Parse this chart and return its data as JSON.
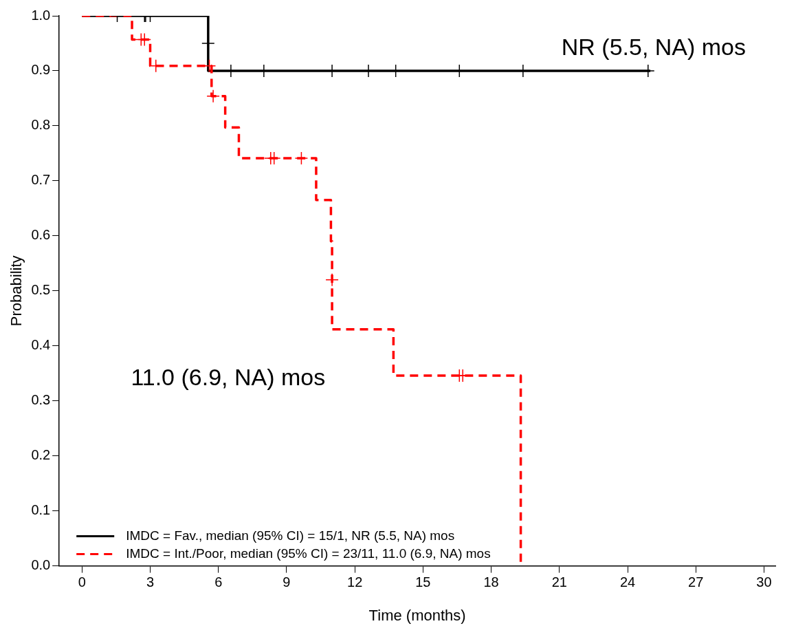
{
  "chart_data": {
    "type": "step",
    "xlabel": "Time (months)",
    "ylabel": "Probability",
    "annotations": [
      "NR (5.5, NA) mos",
      "11.0 (6.9, NA) mos"
    ],
    "xlim": [
      -1,
      30.5
    ],
    "ylim": [
      0,
      1
    ],
    "xticks": [
      0,
      3,
      6,
      9,
      12,
      15,
      18,
      21,
      24,
      27,
      30
    ],
    "yticks": [
      {
        "value": 0,
        "label": "0.0"
      },
      {
        "value": 0.1,
        "label": "0.1"
      },
      {
        "value": 0.2,
        "label": "0.2"
      },
      {
        "value": 0.3,
        "label": "0.3"
      },
      {
        "value": 0.4,
        "label": "0.4"
      },
      {
        "value": 0.5,
        "label": "0.5"
      },
      {
        "value": 0.6,
        "label": "0.6"
      },
      {
        "value": 0.7,
        "label": "0.7"
      },
      {
        "value": 0.8,
        "label": "0.8"
      },
      {
        "value": 0.9,
        "label": "0.9"
      },
      {
        "value": 1,
        "label": "1.0"
      }
    ],
    "grid": false,
    "legend": "bottom left",
    "series": [
      {
        "name": "IMDC = Fav., median (95% CI) = 15/1, NR (5.5, NA) mos",
        "color": "#000000",
        "line_style": "solid",
        "x": [
          0,
          5.55,
          25
        ],
        "values": [
          1,
          0.9,
          0.9
        ]
      },
      {
        "name": "IMDC = Int./Poor, median (95% CI) = 23/11, 11.0 (6.9, NA) mos",
        "color": "#ff0000",
        "line_style": "dashed",
        "x": [
          0,
          2.2,
          3.0,
          5.7,
          6.3,
          6.9,
          10.3,
          10.95,
          11.0,
          11.0,
          13.7,
          19.3
        ],
        "values": [
          1,
          0.957,
          0.909,
          0.854,
          0.797,
          0.741,
          0.665,
          0.59,
          0.52,
          0.43,
          0.346,
          0
        ]
      },
      {
        "type": "scatter",
        "color": "#000000",
        "marker": "cross",
        "x": [
          1.55,
          2.75,
          2.8,
          3.0,
          5.55,
          6.55,
          8.0,
          11.0,
          12.6,
          13.8,
          16.6,
          19.4,
          24.9
        ],
        "values": [
          1,
          1,
          1,
          1,
          0.95,
          0.9,
          0.9,
          0.9,
          0.9,
          0.9,
          0.9,
          0.9,
          0.9
        ]
      },
      {
        "type": "scatter",
        "color": "#ff0000",
        "marker": "cross",
        "x": [
          2.6,
          2.75,
          3.25,
          5.6,
          5.77,
          8.3,
          8.45,
          9.65,
          11.0,
          16.6,
          16.75
        ],
        "values": [
          0.957,
          0.957,
          0.909,
          0.909,
          0.854,
          0.741,
          0.741,
          0.741,
          0.52,
          0.346,
          0.346
        ]
      }
    ]
  }
}
